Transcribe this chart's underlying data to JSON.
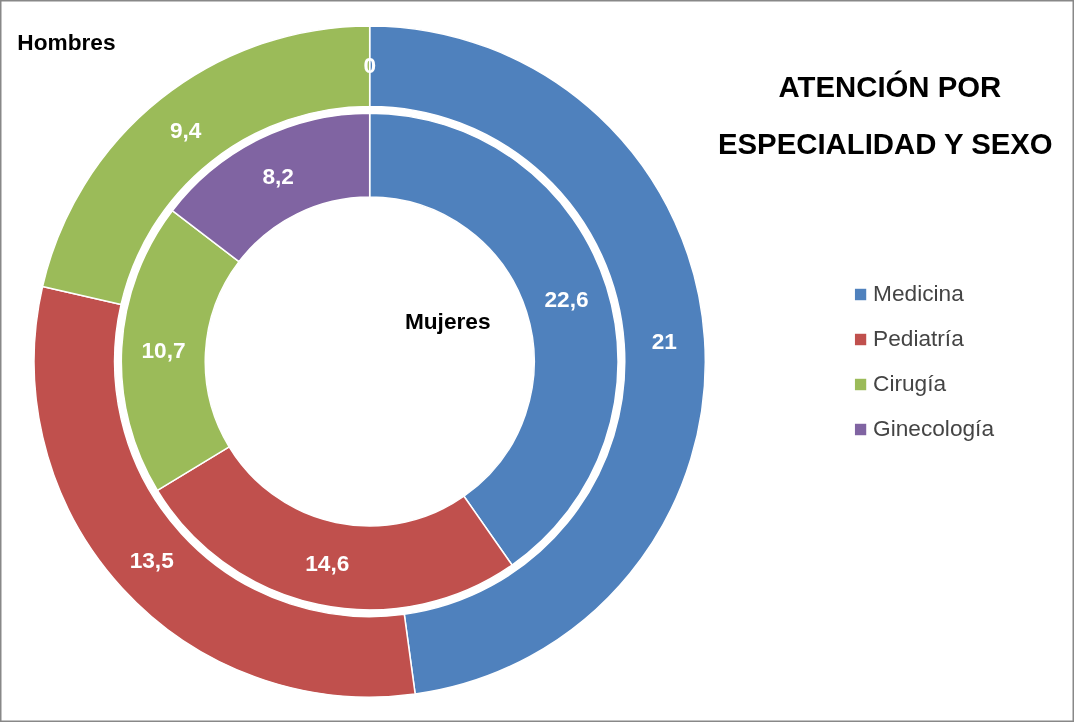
{
  "chart_data": {
    "type": "donut",
    "title": "ATENCIÓN POR ESPECIALIDAD  Y SEXO",
    "categories": [
      "Medicina",
      "Pediatría",
      "Cirugía",
      "Ginecología"
    ],
    "colors": [
      "#4f81bd",
      "#c0504d",
      "#9bbb59",
      "#8064a2"
    ],
    "series": [
      {
        "name": "Hombres",
        "values": [
          21,
          13.5,
          9.4,
          0
        ],
        "value_labels": [
          "21",
          "13,5",
          "9,4",
          "0"
        ]
      },
      {
        "name": "Mujeres",
        "values": [
          22.6,
          14.6,
          10.7,
          8.2
        ],
        "value_labels": [
          "22,6",
          "14,6",
          "10,7",
          "8,2"
        ]
      }
    ],
    "legend": "right"
  }
}
